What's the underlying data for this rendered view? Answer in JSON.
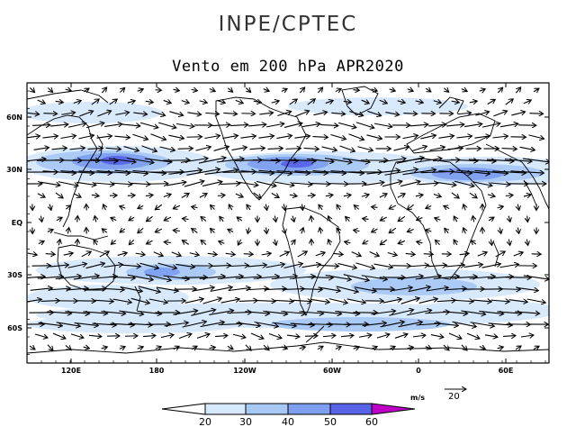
{
  "header": {
    "organization": "INPE/CPTEC",
    "title": "Vento em 200 hPa APR2020"
  },
  "axes": {
    "lon_labels": [
      "120E",
      "180",
      "120W",
      "60W",
      "0",
      "60E"
    ],
    "lat_labels": [
      "60N",
      "30N",
      "EQ",
      "30S",
      "60S"
    ]
  },
  "legend": {
    "unit": "m/s",
    "ref_vector": "20",
    "levels": [
      "20",
      "30",
      "40",
      "50",
      "60"
    ],
    "colors": [
      "#ffffff",
      "#d6e8fc",
      "#a9c9f5",
      "#7e9ef0",
      "#5764e8",
      "#c000c8"
    ]
  },
  "map": {
    "lon_range": "80E to 80E (360°)",
    "lat_range": "80S to 80N"
  }
}
